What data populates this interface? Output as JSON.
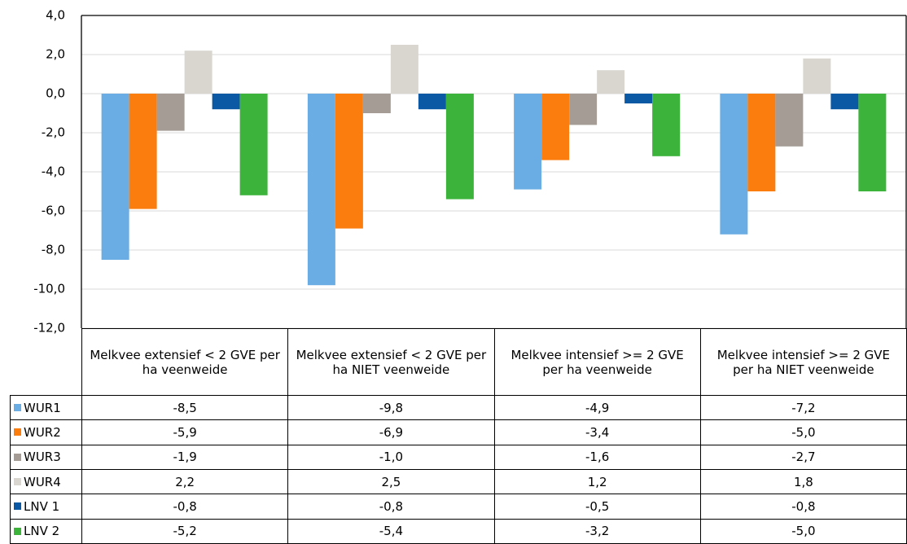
{
  "chart_data": {
    "type": "bar",
    "categories": [
      "Melkvee extensief < 2 GVE per ha veenweide",
      "Melkvee extensief < 2 GVE per ha NIET veenweide",
      "Melkvee intensief >= 2 GVE per ha veenweide",
      "Melkvee intensief >= 2 GVE per ha NIET veenweide"
    ],
    "series": [
      {
        "name": "WUR1",
        "color": "#6aade4",
        "values": [
          -8.5,
          -9.8,
          -4.9,
          -7.2
        ],
        "value_labels": [
          "-8,5",
          "-9,8",
          "-4,9",
          "-7,2"
        ]
      },
      {
        "name": "WUR2",
        "color": "#fb7d0e",
        "values": [
          -5.9,
          -6.9,
          -3.4,
          -5.0
        ],
        "value_labels": [
          "-5,9",
          "-6,9",
          "-3,4",
          "-5,0"
        ]
      },
      {
        "name": "WUR3",
        "color": "#a59d95",
        "values": [
          -1.9,
          -1.0,
          -1.6,
          -2.7
        ],
        "value_labels": [
          "-1,9",
          "-1,0",
          "-1,6",
          "-2,7"
        ]
      },
      {
        "name": "WUR4",
        "color": "#d9d6cf",
        "values": [
          2.2,
          2.5,
          1.2,
          1.8
        ],
        "value_labels": [
          "2,2",
          "2,5",
          "1,2",
          "1,8"
        ]
      },
      {
        "name": "LNV 1",
        "color": "#0b58a5",
        "values": [
          -0.8,
          -0.8,
          -0.5,
          -0.8
        ],
        "value_labels": [
          "-0,8",
          "-0,8",
          "-0,5",
          "-0,8"
        ]
      },
      {
        "name": "LNV 2",
        "color": "#3cb43c",
        "values": [
          -5.2,
          -5.4,
          -3.2,
          -5.0
        ],
        "value_labels": [
          "-5,2",
          "-5,4",
          "-3,2",
          "-5,0"
        ]
      }
    ],
    "ylim": [
      -12,
      4
    ],
    "yticks": [
      {
        "value": -12,
        "label": "-12,0"
      },
      {
        "value": -10,
        "label": "-10,0"
      },
      {
        "value": -8,
        "label": "-8,0"
      },
      {
        "value": -6,
        "label": "-6,0"
      },
      {
        "value": -4,
        "label": "-4,0"
      },
      {
        "value": -2,
        "label": "-2,0"
      },
      {
        "value": 0,
        "label": "0,0"
      },
      {
        "value": 2,
        "label": "2,0"
      },
      {
        "value": 4,
        "label": "4,0"
      }
    ],
    "grid": true
  }
}
